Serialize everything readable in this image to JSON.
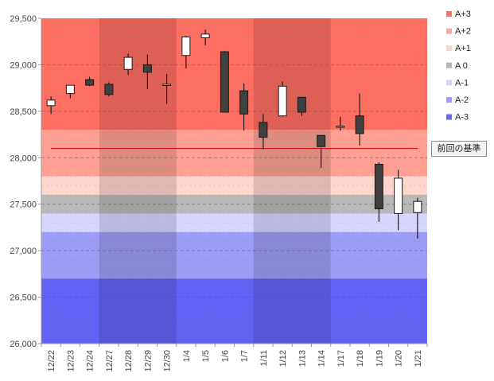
{
  "chart_data": {
    "type": "candlestick",
    "ylim": [
      26000,
      29500
    ],
    "yticks": [
      26000,
      26500,
      27000,
      27500,
      28000,
      28500,
      29000,
      29500
    ],
    "ytick_labels": [
      "26,000",
      "26,500",
      "27,000",
      "27,500",
      "28,000",
      "28,500",
      "29,000",
      "29,500"
    ],
    "categories": [
      "12/22",
      "12/23",
      "12/24",
      "12/27",
      "12/28",
      "12/29",
      "12/30",
      "1/4",
      "1/5",
      "1/6",
      "1/7",
      "1/11",
      "1/12",
      "1/13",
      "1/14",
      "1/17",
      "1/18",
      "1/19",
      "1/20",
      "1/21"
    ],
    "candles": [
      {
        "open": 28560,
        "high": 28660,
        "low": 28470,
        "close": 28620
      },
      {
        "open": 28690,
        "high": 28770,
        "low": 28640,
        "close": 28780
      },
      {
        "open": 28840,
        "high": 28870,
        "low": 28770,
        "close": 28780
      },
      {
        "open": 28790,
        "high": 28810,
        "low": 28660,
        "close": 28680
      },
      {
        "open": 28950,
        "high": 29120,
        "low": 28890,
        "close": 29080
      },
      {
        "open": 29000,
        "high": 29110,
        "low": 28740,
        "close": 28920
      },
      {
        "open": 28780,
        "high": 28900,
        "low": 28580,
        "close": 28790
      },
      {
        "open": 29100,
        "high": 29310,
        "low": 28960,
        "close": 29300
      },
      {
        "open": 29290,
        "high": 29380,
        "low": 29210,
        "close": 29330
      },
      {
        "open": 29140,
        "high": 29150,
        "low": 28490,
        "close": 28490
      },
      {
        "open": 28720,
        "high": 28800,
        "low": 28290,
        "close": 28470
      },
      {
        "open": 28380,
        "high": 28470,
        "low": 28090,
        "close": 28220
      },
      {
        "open": 28450,
        "high": 28820,
        "low": 28440,
        "close": 28770
      },
      {
        "open": 28650,
        "high": 28650,
        "low": 28450,
        "close": 28490
      },
      {
        "open": 28240,
        "high": 28240,
        "low": 27890,
        "close": 28120
      },
      {
        "open": 28330,
        "high": 28440,
        "low": 28290,
        "close": 28340
      },
      {
        "open": 28450,
        "high": 28690,
        "low": 28130,
        "close": 28260
      },
      {
        "open": 27930,
        "high": 27950,
        "low": 27310,
        "close": 27450
      },
      {
        "open": 27400,
        "high": 27870,
        "low": 27220,
        "close": 27780
      },
      {
        "open": 27410,
        "high": 27570,
        "low": 27130,
        "close": 27530
      }
    ],
    "bands": [
      {
        "name": "A+3",
        "from": 28300,
        "to": 29500,
        "color": "#ff6f61"
      },
      {
        "name": "A+2",
        "from": 27800,
        "to": 28300,
        "color": "#ffa093"
      },
      {
        "name": "A+1",
        "from": 27600,
        "to": 27800,
        "color": "#ffd5cf"
      },
      {
        "name": "A 0",
        "from": 27400,
        "to": 27600,
        "color": "#b9b9b9"
      },
      {
        "name": "A-1",
        "from": 27200,
        "to": 27400,
        "color": "#d6d6ff"
      },
      {
        "name": "A-2",
        "from": 26700,
        "to": 27200,
        "color": "#9d9df7"
      },
      {
        "name": "A-3",
        "from": 26000,
        "to": 26700,
        "color": "#6262f5"
      }
    ],
    "shaded_columns": [
      [
        3,
        6
      ],
      [
        11,
        14
      ]
    ],
    "reference_line": {
      "value": 28100,
      "color": "#cc0000"
    },
    "reference_label": "前回の基準",
    "legend": [
      "A+3",
      "A+2",
      "A+1",
      "A 0",
      "A-1",
      "A-2",
      "A-3"
    ],
    "legend_colors": [
      "#f8776a",
      "#fba89c",
      "#ffd3cd",
      "#b5b5b5",
      "#d4d4ff",
      "#9d9df5",
      "#6868f0"
    ],
    "up_color": "#ffffff",
    "down_color": "#404040",
    "grid": true
  }
}
